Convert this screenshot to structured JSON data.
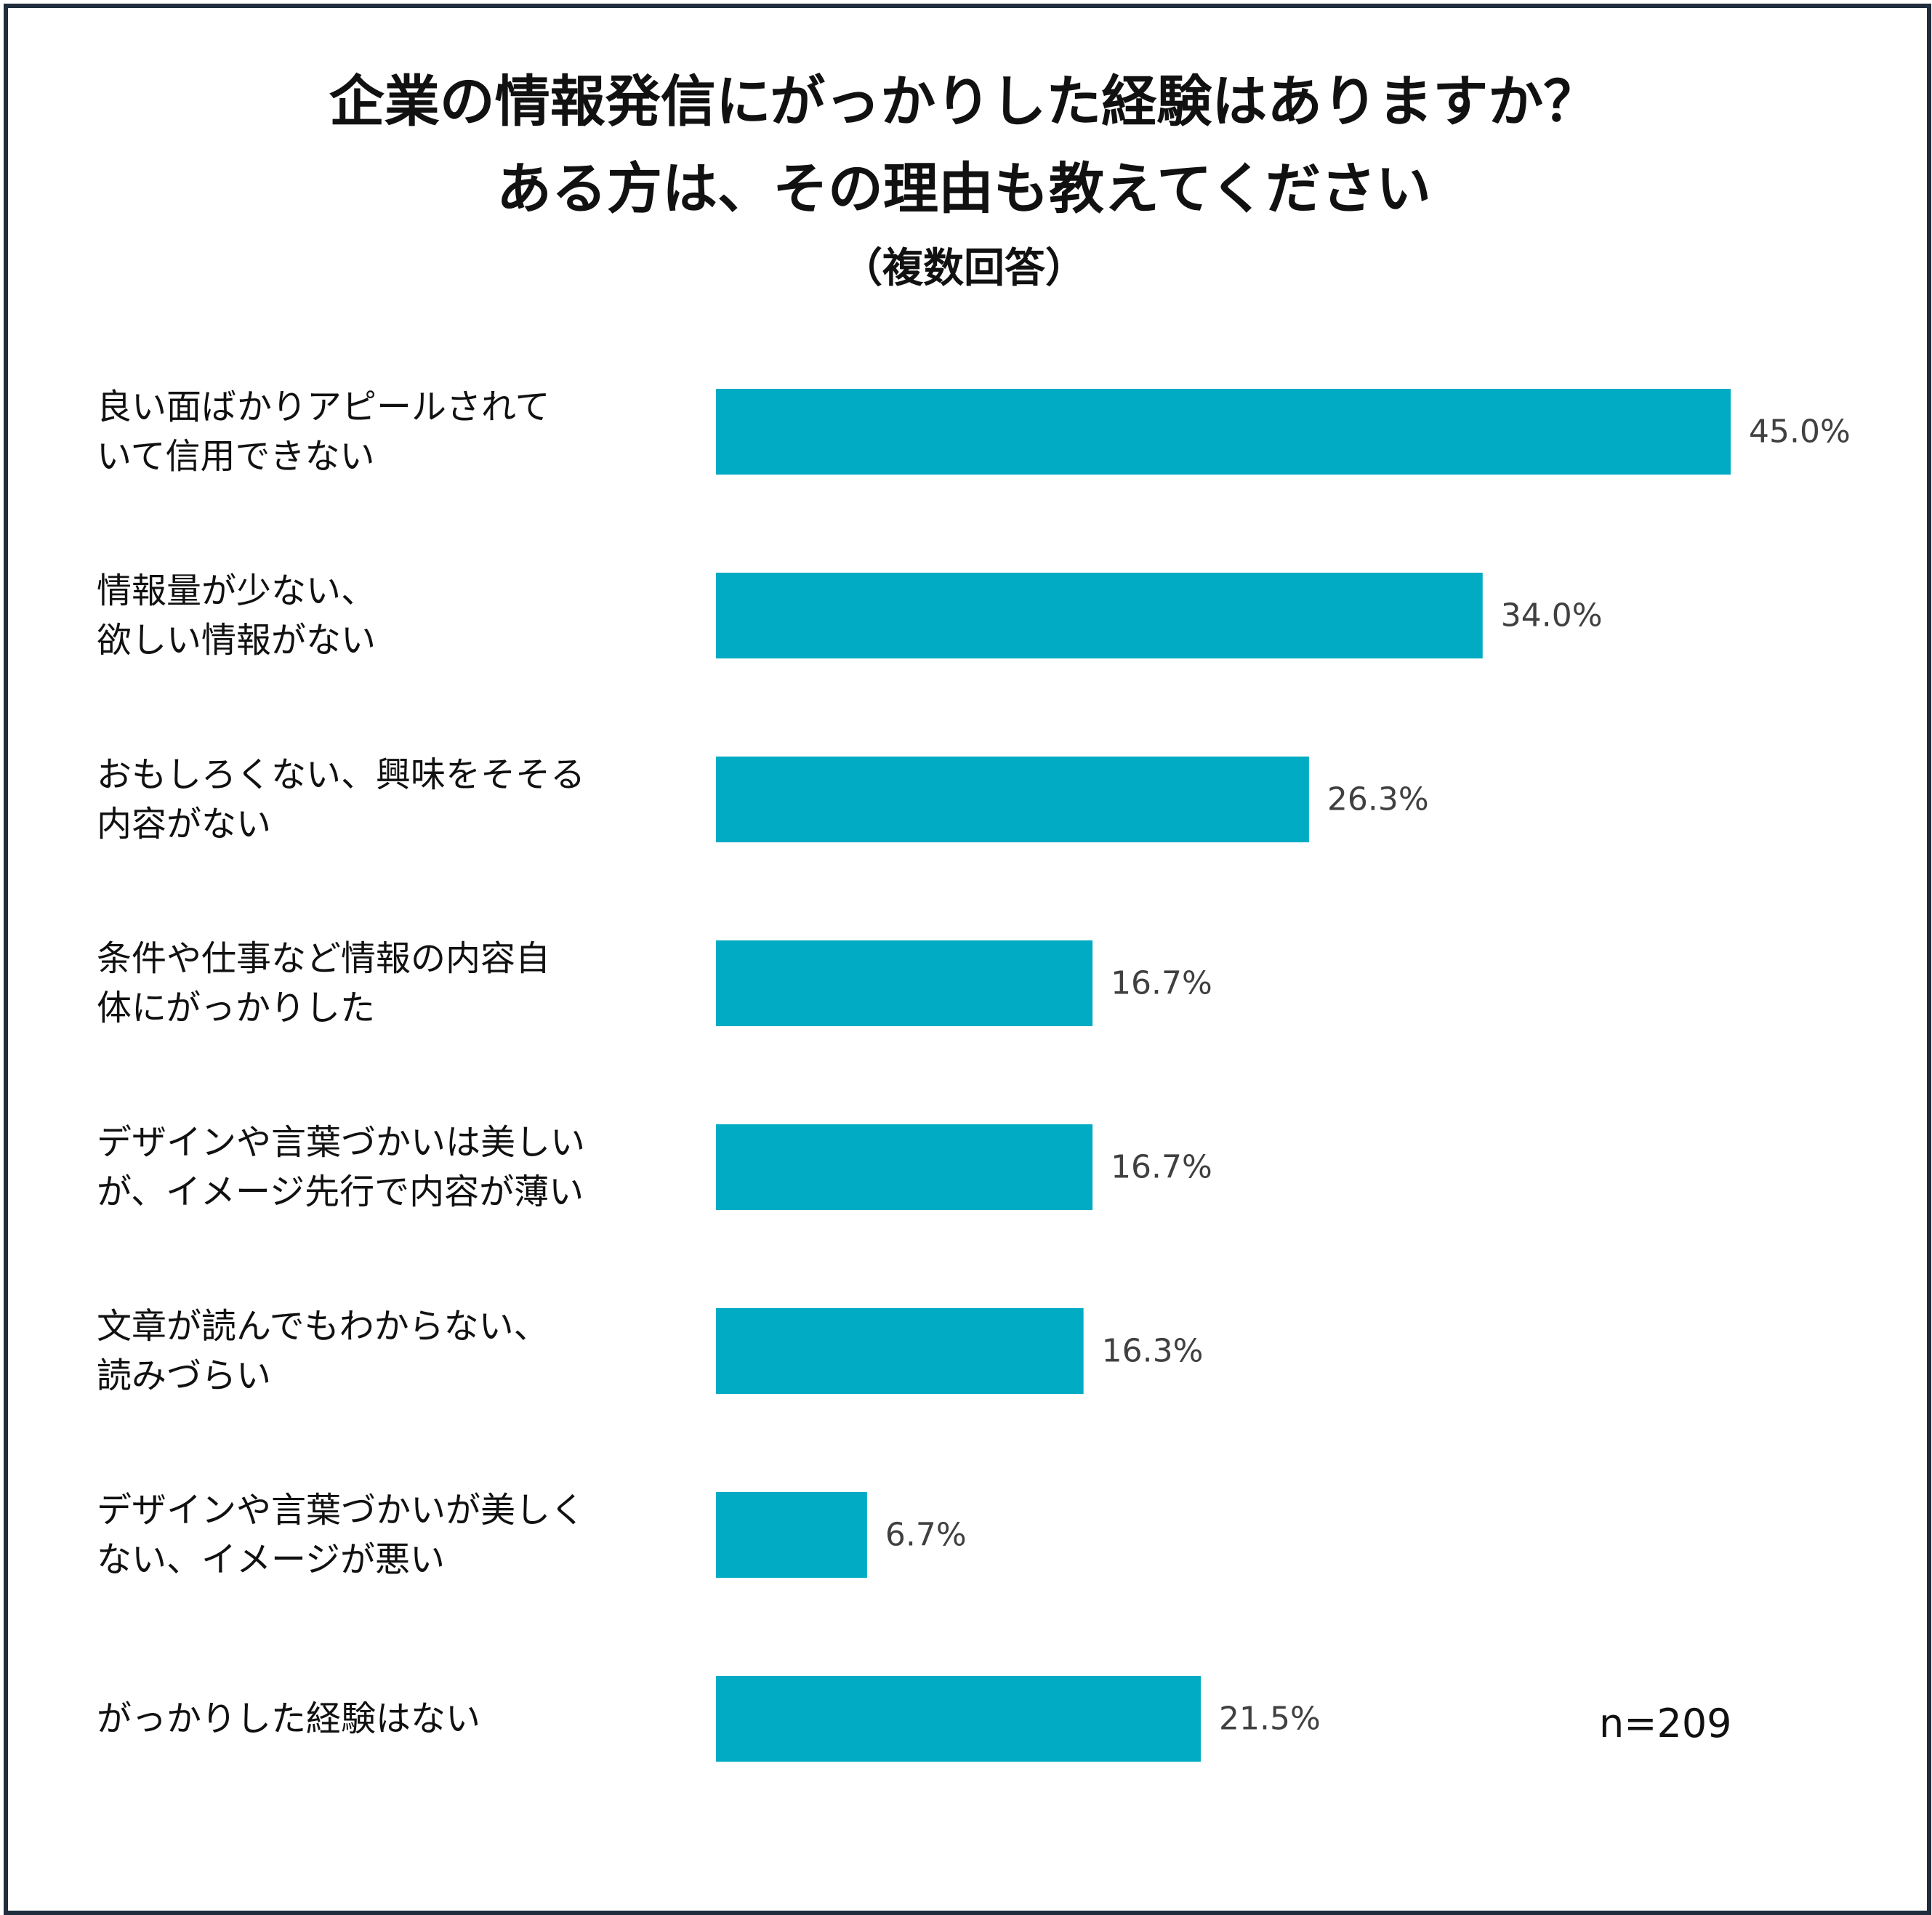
{
  "title": {
    "line1": "企業の情報発信にがっかりした経験はありますか？",
    "line2": "ある方は、その理由も教えてください",
    "subtitle": "（複数回答）"
  },
  "note": "n=209",
  "colors": {
    "bar": "#00abc3",
    "frame": "#1f2d3d"
  },
  "chart_data": {
    "type": "bar",
    "orientation": "horizontal",
    "title": "企業の情報発信にがっかりした経験はありますか？ある方は、その理由も教えてください",
    "subtitle": "（複数回答）",
    "xlabel": "",
    "ylabel": "",
    "unit": "%",
    "xlim": [
      0,
      45.0
    ],
    "grid": false,
    "legend": "none",
    "categories": [
      [
        "良い面ばかりアピールされて",
        "いて信用できない"
      ],
      [
        "情報量が少ない、",
        "欲しい情報がない"
      ],
      [
        "おもしろくない、興味をそそる",
        "内容がない"
      ],
      [
        "条件や仕事など情報の内容自",
        "体にがっかりした"
      ],
      [
        "デザインや言葉づかいは美しい",
        "が、イメージ先行で内容が薄い"
      ],
      [
        "文章が読んでもわからない、",
        "読みづらい"
      ],
      [
        "デザインや言葉づかいが美しく",
        "ない、イメージが悪い"
      ],
      [
        "がっかりした経験はない"
      ]
    ],
    "values": [
      45.0,
      34.0,
      26.3,
      16.7,
      16.7,
      16.3,
      6.7,
      21.5
    ],
    "value_labels": [
      "45.0%",
      "34.0%",
      "26.3%",
      "16.7%",
      "16.7%",
      "16.3%",
      "6.7%",
      "21.5%"
    ]
  }
}
